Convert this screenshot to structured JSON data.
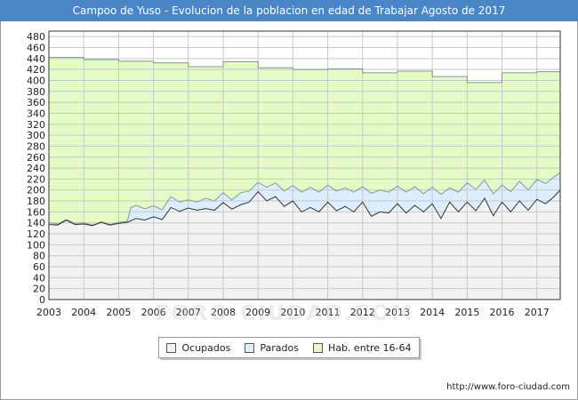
{
  "title": "Campoo de Yuso - Evolucion de la poblacion en edad de Trabajar Agosto de 2017",
  "source": "http://www.foro-ciudad.com",
  "watermark": "FORO-CIUDAD.COM",
  "legend": {
    "ocupados": "Ocupados",
    "parados": "Parados",
    "hab": "Hab. entre 16-64"
  },
  "colors": {
    "title_bg": "#4a86c6",
    "ocupados_fill": "#f2f2f2",
    "parados_fill": "#ddeeff",
    "hab_fill": "#e5fbc5",
    "grid": "#c8c8c8"
  },
  "chart_data": {
    "type": "area",
    "title": "Campoo de Yuso - Evolucion de la poblacion en edad de Trabajar Agosto de 2017",
    "x_ticks": [
      "2003",
      "2004",
      "2005",
      "2006",
      "2007",
      "2008",
      "2009",
      "2010",
      "2011",
      "2012",
      "2013",
      "2014",
      "2015",
      "2016",
      "2017"
    ],
    "y_ticks": [
      0,
      20,
      40,
      60,
      80,
      100,
      120,
      140,
      160,
      180,
      200,
      220,
      240,
      260,
      280,
      300,
      320,
      340,
      360,
      380,
      400,
      420,
      440,
      460,
      480
    ],
    "xlim": [
      2003,
      2017.67
    ],
    "ylim": [
      0,
      490
    ],
    "grid": true,
    "legend_position": "bottom",
    "series": [
      {
        "name": "Hab. entre 16-64",
        "step": true,
        "points": [
          [
            2003,
            442
          ],
          [
            2004,
            438
          ],
          [
            2005,
            435
          ],
          [
            2006,
            432
          ],
          [
            2007,
            425
          ],
          [
            2008,
            434
          ],
          [
            2009,
            423
          ],
          [
            2010,
            420
          ],
          [
            2011,
            421
          ],
          [
            2012,
            414
          ],
          [
            2013,
            417
          ],
          [
            2014,
            407
          ],
          [
            2015,
            396
          ],
          [
            2016,
            414
          ],
          [
            2017,
            416
          ]
        ]
      },
      {
        "name": "Parados",
        "points": [
          [
            2003,
            140
          ],
          [
            2003.25,
            138
          ],
          [
            2003.5,
            146
          ],
          [
            2003.75,
            139
          ],
          [
            2004,
            140
          ],
          [
            2004.25,
            136
          ],
          [
            2004.5,
            142
          ],
          [
            2004.75,
            137
          ],
          [
            2005,
            141
          ],
          [
            2005.25,
            143
          ],
          [
            2005.35,
            168
          ],
          [
            2005.5,
            172
          ],
          [
            2005.75,
            166
          ],
          [
            2006,
            171
          ],
          [
            2006.25,
            164
          ],
          [
            2006.5,
            188
          ],
          [
            2006.75,
            178
          ],
          [
            2007,
            182
          ],
          [
            2007.25,
            178
          ],
          [
            2007.5,
            185
          ],
          [
            2007.75,
            180
          ],
          [
            2008,
            195
          ],
          [
            2008.25,
            182
          ],
          [
            2008.5,
            195
          ],
          [
            2008.75,
            198
          ],
          [
            2009,
            214
          ],
          [
            2009.25,
            205
          ],
          [
            2009.5,
            213
          ],
          [
            2009.75,
            198
          ],
          [
            2010,
            208
          ],
          [
            2010.25,
            196
          ],
          [
            2010.5,
            205
          ],
          [
            2010.75,
            196
          ],
          [
            2011,
            209
          ],
          [
            2011.25,
            198
          ],
          [
            2011.5,
            204
          ],
          [
            2011.75,
            196
          ],
          [
            2012,
            206
          ],
          [
            2012.25,
            194
          ],
          [
            2012.5,
            200
          ],
          [
            2012.75,
            196
          ],
          [
            2013,
            207
          ],
          [
            2013.25,
            196
          ],
          [
            2013.5,
            206
          ],
          [
            2013.75,
            193
          ],
          [
            2014,
            205
          ],
          [
            2014.25,
            192
          ],
          [
            2014.5,
            204
          ],
          [
            2014.75,
            196
          ],
          [
            2015,
            213
          ],
          [
            2015.25,
            201
          ],
          [
            2015.5,
            218
          ],
          [
            2015.75,
            193
          ],
          [
            2016,
            209
          ],
          [
            2016.25,
            197
          ],
          [
            2016.5,
            216
          ],
          [
            2016.75,
            200
          ],
          [
            2017,
            219
          ],
          [
            2017.25,
            212
          ],
          [
            2017.5,
            224
          ],
          [
            2017.67,
            232
          ]
        ]
      },
      {
        "name": "Ocupados",
        "points": [
          [
            2003,
            137
          ],
          [
            2003.25,
            136
          ],
          [
            2003.5,
            145
          ],
          [
            2003.75,
            137
          ],
          [
            2004,
            138
          ],
          [
            2004.25,
            135
          ],
          [
            2004.5,
            141
          ],
          [
            2004.75,
            136
          ],
          [
            2005,
            139
          ],
          [
            2005.25,
            141
          ],
          [
            2005.5,
            148
          ],
          [
            2005.75,
            145
          ],
          [
            2006,
            151
          ],
          [
            2006.25,
            146
          ],
          [
            2006.5,
            168
          ],
          [
            2006.75,
            161
          ],
          [
            2007,
            167
          ],
          [
            2007.25,
            163
          ],
          [
            2007.5,
            166
          ],
          [
            2007.75,
            163
          ],
          [
            2008,
            177
          ],
          [
            2008.25,
            165
          ],
          [
            2008.5,
            173
          ],
          [
            2008.75,
            178
          ],
          [
            2009,
            197
          ],
          [
            2009.25,
            180
          ],
          [
            2009.5,
            188
          ],
          [
            2009.75,
            170
          ],
          [
            2010,
            180
          ],
          [
            2010.25,
            160
          ],
          [
            2010.5,
            168
          ],
          [
            2010.75,
            160
          ],
          [
            2011,
            178
          ],
          [
            2011.25,
            162
          ],
          [
            2011.5,
            170
          ],
          [
            2011.75,
            160
          ],
          [
            2012,
            178
          ],
          [
            2012.25,
            152
          ],
          [
            2012.5,
            160
          ],
          [
            2012.75,
            158
          ],
          [
            2013,
            175
          ],
          [
            2013.25,
            158
          ],
          [
            2013.5,
            172
          ],
          [
            2013.75,
            160
          ],
          [
            2014,
            175
          ],
          [
            2014.25,
            148
          ],
          [
            2014.5,
            178
          ],
          [
            2014.75,
            160
          ],
          [
            2015,
            178
          ],
          [
            2015.25,
            162
          ],
          [
            2015.5,
            185
          ],
          [
            2015.75,
            153
          ],
          [
            2016,
            178
          ],
          [
            2016.25,
            160
          ],
          [
            2016.5,
            180
          ],
          [
            2016.75,
            163
          ],
          [
            2017,
            183
          ],
          [
            2017.25,
            175
          ],
          [
            2017.5,
            188
          ],
          [
            2017.67,
            200
          ]
        ]
      }
    ]
  }
}
